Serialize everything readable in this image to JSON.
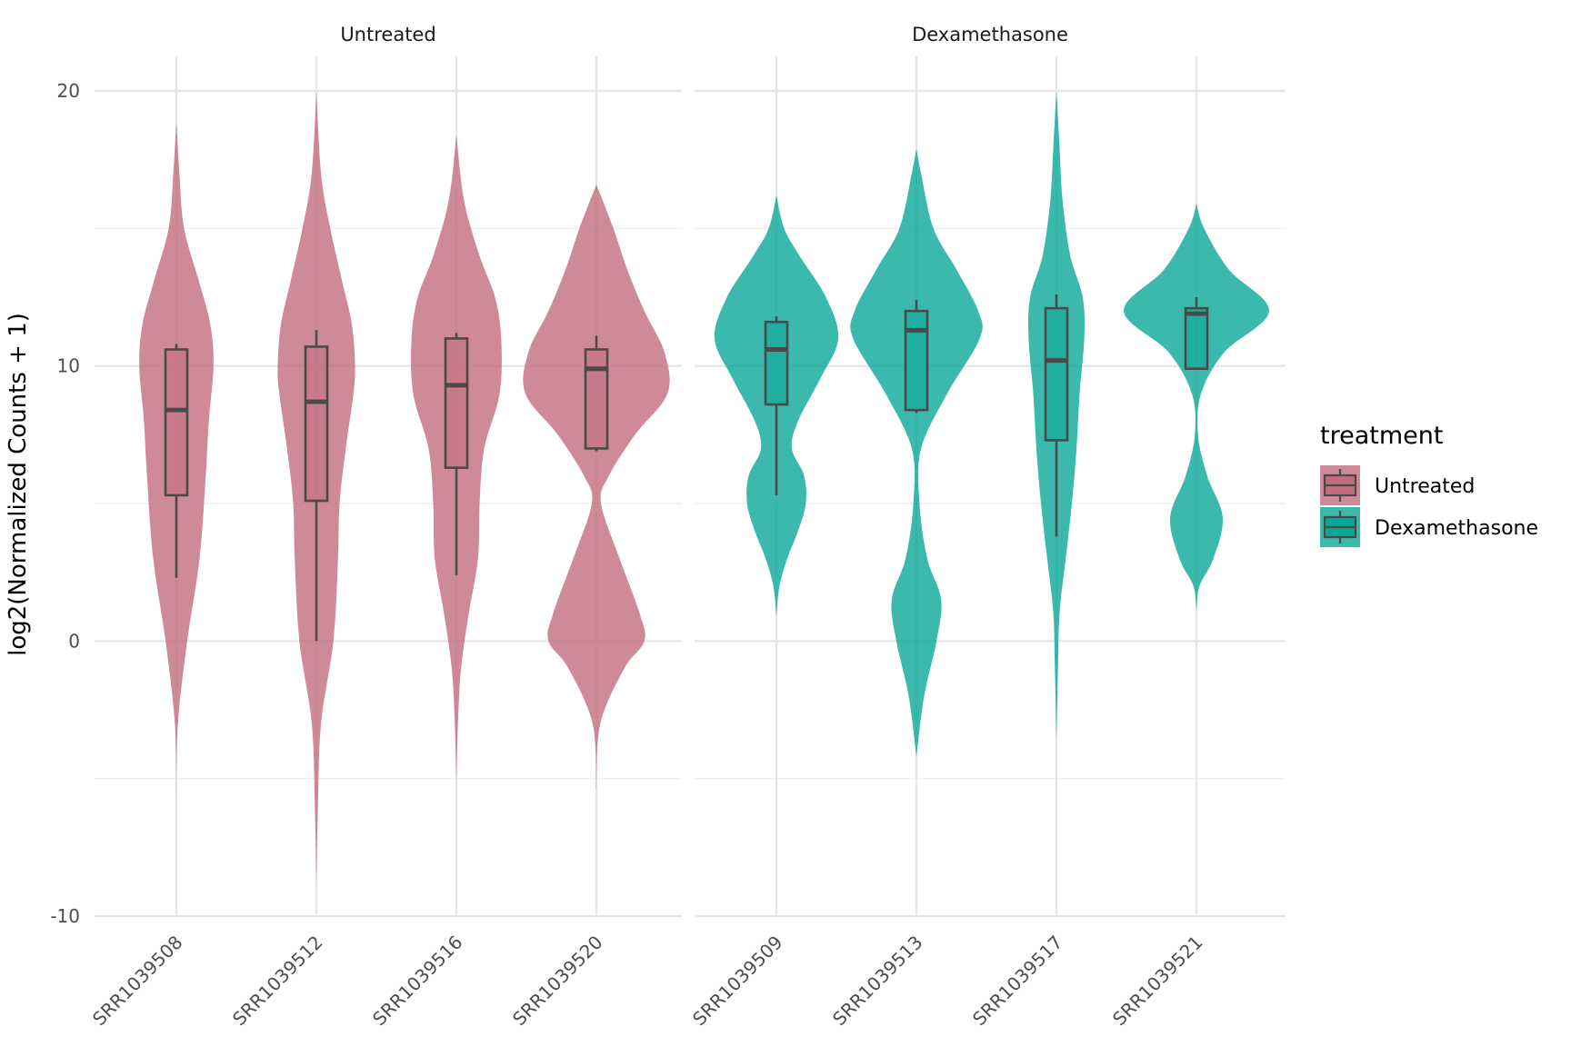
{
  "chart_data": {
    "type": "violin",
    "ylabel": "log2(Normalized Counts + 1)",
    "xlabel": "",
    "ylim": [
      -10,
      20
    ],
    "yticks": [
      -10,
      0,
      10,
      20
    ],
    "grid": true,
    "legend": {
      "title": "treatment",
      "position": "right",
      "entries": [
        {
          "label": "Untreated",
          "color": "#c26d7f"
        },
        {
          "label": "Dexamethasone",
          "color": "#0aa797"
        }
      ]
    },
    "panels": [
      {
        "title": "Untreated",
        "color": "#c26d7f",
        "samples": [
          {
            "name": "SRR1039508",
            "ymin": -5.8,
            "ymax": 18.9,
            "density": [
              [
                -5.8,
                0
              ],
              [
                -3,
                0.02
              ],
              [
                0,
                0.14
              ],
              [
                3,
                0.3
              ],
              [
                6,
                0.38
              ],
              [
                8,
                0.42
              ],
              [
                10,
                0.48
              ],
              [
                11.5,
                0.44
              ],
              [
                13,
                0.3
              ],
              [
                15,
                0.1
              ],
              [
                17,
                0.04
              ],
              [
                18.9,
                0
              ]
            ],
            "box": {
              "lower": 2.3,
              "q1": 5.3,
              "median": 8.4,
              "q3": 10.6,
              "upper": 10.8
            }
          },
          {
            "name": "SRR1039512",
            "ymin": -8.8,
            "ymax": 20.0,
            "density": [
              [
                -8.8,
                0
              ],
              [
                -6,
                0.02
              ],
              [
                -3,
                0.06
              ],
              [
                0,
                0.22
              ],
              [
                3,
                0.28
              ],
              [
                5,
                0.3
              ],
              [
                7,
                0.38
              ],
              [
                9,
                0.48
              ],
              [
                10,
                0.5
              ],
              [
                11.5,
                0.46
              ],
              [
                13,
                0.34
              ],
              [
                15,
                0.18
              ],
              [
                17,
                0.06
              ],
              [
                20,
                0
              ]
            ],
            "box": {
              "lower": 0.0,
              "q1": 5.1,
              "median": 8.7,
              "q3": 10.7,
              "upper": 11.3
            }
          },
          {
            "name": "SRR1039516",
            "ymin": -5.1,
            "ymax": 18.4,
            "density": [
              [
                -5.1,
                0
              ],
              [
                -3,
                0.02
              ],
              [
                -1,
                0.06
              ],
              [
                1,
                0.16
              ],
              [
                3,
                0.28
              ],
              [
                5,
                0.3
              ],
              [
                7,
                0.36
              ],
              [
                9,
                0.56
              ],
              [
                11,
                0.58
              ],
              [
                12.5,
                0.5
              ],
              [
                14,
                0.3
              ],
              [
                16,
                0.1
              ],
              [
                18.4,
                0
              ]
            ],
            "box": {
              "lower": 2.4,
              "q1": 6.3,
              "median": 9.3,
              "q3": 11.0,
              "upper": 11.2
            }
          },
          {
            "name": "SRR1039520",
            "ymin": -5.4,
            "ymax": 16.6,
            "density": [
              [
                -5.4,
                0
              ],
              [
                -3,
                0.05
              ],
              [
                -1,
                0.36
              ],
              [
                0,
                0.62
              ],
              [
                1,
                0.56
              ],
              [
                3,
                0.3
              ],
              [
                5,
                0.06
              ],
              [
                6,
                0.16
              ],
              [
                7.5,
                0.5
              ],
              [
                9,
                0.92
              ],
              [
                10.5,
                0.88
              ],
              [
                12,
                0.62
              ],
              [
                13.5,
                0.4
              ],
              [
                15,
                0.22
              ],
              [
                16.6,
                0
              ]
            ],
            "box": {
              "lower": 6.9,
              "q1": 7.0,
              "median": 9.9,
              "q3": 10.6,
              "upper": 11.1
            }
          }
        ]
      },
      {
        "title": "Dexamethasone",
        "color": "#0aa797",
        "samples": [
          {
            "name": "SRR1039509",
            "ymin": 0.9,
            "ymax": 16.2,
            "density": [
              [
                0.9,
                0
              ],
              [
                2,
                0.04
              ],
              [
                3,
                0.14
              ],
              [
                4,
                0.28
              ],
              [
                5,
                0.38
              ],
              [
                6,
                0.36
              ],
              [
                7,
                0.2
              ],
              [
                8,
                0.28
              ],
              [
                9.5,
                0.56
              ],
              [
                11,
                0.8
              ],
              [
                12.5,
                0.64
              ],
              [
                14,
                0.3
              ],
              [
                15,
                0.1
              ],
              [
                16.2,
                0
              ]
            ],
            "box": {
              "lower": 5.3,
              "q1": 8.6,
              "median": 10.6,
              "q3": 11.6,
              "upper": 11.8
            }
          },
          {
            "name": "SRR1039513",
            "ymin": -4.2,
            "ymax": 17.9,
            "density": [
              [
                -4.2,
                0
              ],
              [
                -2,
                0.1
              ],
              [
                0,
                0.26
              ],
              [
                1.5,
                0.32
              ],
              [
                3,
                0.14
              ],
              [
                5,
                0.04
              ],
              [
                7,
                0.06
              ],
              [
                9,
                0.4
              ],
              [
                11,
                0.82
              ],
              [
                12,
                0.8
              ],
              [
                13.5,
                0.52
              ],
              [
                15,
                0.22
              ],
              [
                17,
                0.06
              ],
              [
                17.9,
                0
              ]
            ],
            "box": {
              "lower": 8.3,
              "q1": 8.4,
              "median": 11.3,
              "q3": 12.0,
              "upper": 12.4
            }
          },
          {
            "name": "SRR1039517",
            "ymin": -3.6,
            "ymax": 20.0,
            "density": [
              [
                -3.6,
                0
              ],
              [
                -1,
                0.02
              ],
              [
                1,
                0.04
              ],
              [
                3,
                0.12
              ],
              [
                5,
                0.2
              ],
              [
                7,
                0.26
              ],
              [
                9,
                0.3
              ],
              [
                11,
                0.36
              ],
              [
                12.5,
                0.34
              ],
              [
                14,
                0.18
              ],
              [
                16,
                0.08
              ],
              [
                18,
                0.04
              ],
              [
                20,
                0
              ]
            ],
            "box": {
              "lower": 3.8,
              "q1": 7.3,
              "median": 10.2,
              "q3": 12.1,
              "upper": 12.6
            }
          },
          {
            "name": "SRR1039521",
            "ymin": 1.1,
            "ymax": 15.9,
            "density": [
              [
                1.1,
                0
              ],
              [
                2,
                0.04
              ],
              [
                3,
                0.22
              ],
              [
                4.5,
                0.34
              ],
              [
                6,
                0.14
              ],
              [
                7.5,
                0.02
              ],
              [
                9,
                0.06
              ],
              [
                10.5,
                0.36
              ],
              [
                12,
                0.94
              ],
              [
                13.5,
                0.42
              ],
              [
                15,
                0.1
              ],
              [
                15.9,
                0
              ]
            ],
            "box": {
              "lower": 9.9,
              "q1": 9.9,
              "median": 11.9,
              "q3": 12.1,
              "upper": 12.5
            }
          }
        ]
      }
    ]
  }
}
